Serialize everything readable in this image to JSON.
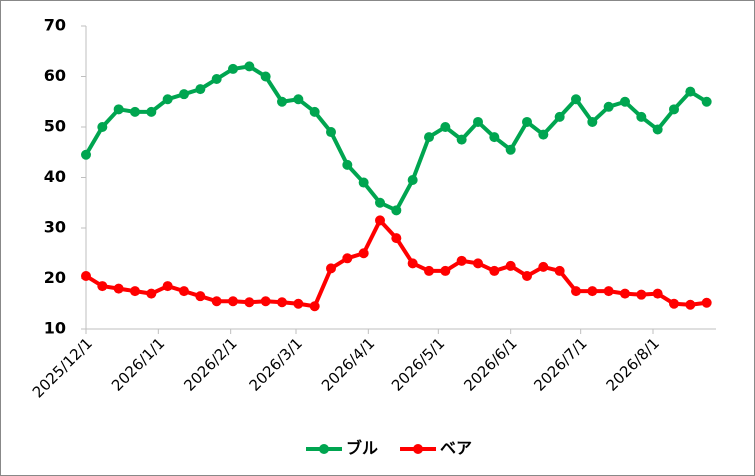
{
  "chart_data": {
    "type": "line",
    "x": [
      "2025-12-01",
      "2025-12-08",
      "2025-12-15",
      "2025-12-22",
      "2025-12-29",
      "2026-01-05",
      "2026-01-12",
      "2026-01-19",
      "2026-01-26",
      "2026-02-02",
      "2026-02-09",
      "2026-02-16",
      "2026-02-23",
      "2026-03-02",
      "2026-03-09",
      "2026-03-16",
      "2026-03-23",
      "2026-03-30",
      "2026-04-06",
      "2026-04-13",
      "2026-04-20",
      "2026-04-27",
      "2026-05-04",
      "2026-05-11",
      "2026-05-18",
      "2026-05-25",
      "2026-06-01",
      "2026-06-08",
      "2026-06-15",
      "2026-06-22",
      "2026-06-29",
      "2026-07-06",
      "2026-07-13",
      "2026-07-20",
      "2026-07-27",
      "2026-08-03",
      "2026-08-10",
      "2026-08-17",
      "2026-08-24"
    ],
    "series": [
      {
        "name": "ブル",
        "color": "#00a550",
        "values": [
          44.5,
          50,
          53.5,
          53,
          53,
          55.5,
          56.5,
          57.5,
          59.5,
          61.5,
          62,
          60,
          55,
          55.5,
          53,
          49,
          42.5,
          39,
          35,
          33.5,
          39.5,
          48,
          50,
          47.5,
          51,
          48,
          45.5,
          51,
          48.5,
          52,
          55.5,
          51,
          54,
          55,
          52,
          49.5,
          53.5,
          57,
          55
        ]
      },
      {
        "name": "ベア",
        "color": "#ff0000",
        "values": [
          20.5,
          18.5,
          18,
          17.5,
          17,
          18.5,
          17.5,
          16.5,
          15.5,
          15.5,
          15.3,
          15.5,
          15.3,
          15,
          14.5,
          22,
          24,
          25,
          31.5,
          28,
          23,
          21.5,
          21.5,
          23.5,
          23,
          21.5,
          22.5,
          20.5,
          22.3,
          21.5,
          17.5,
          17.5,
          17.5,
          17,
          16.8,
          17,
          15,
          14.8,
          15.2
        ]
      }
    ],
    "xlim": [
      "2025-12-01",
      "2026-08-28"
    ],
    "xticks": [
      {
        "value": "2025-12-01",
        "label": "2025/12/1"
      },
      {
        "value": "2026-01-01",
        "label": "2026/1/1"
      },
      {
        "value": "2026-02-01",
        "label": "2026/2/1"
      },
      {
        "value": "2026-03-01",
        "label": "2026/3/1"
      },
      {
        "value": "2026-04-01",
        "label": "2026/4/1"
      },
      {
        "value": "2026-05-01",
        "label": "2026/5/1"
      },
      {
        "value": "2026-06-01",
        "label": "2026/6/1"
      },
      {
        "value": "2026-07-01",
        "label": "2026/7/1"
      },
      {
        "value": "2026-08-01",
        "label": "2026/8/1"
      }
    ],
    "ylim": [
      10,
      70
    ],
    "yticks": [
      10,
      20,
      30,
      40,
      50,
      60,
      70
    ],
    "legend": "bottom"
  }
}
